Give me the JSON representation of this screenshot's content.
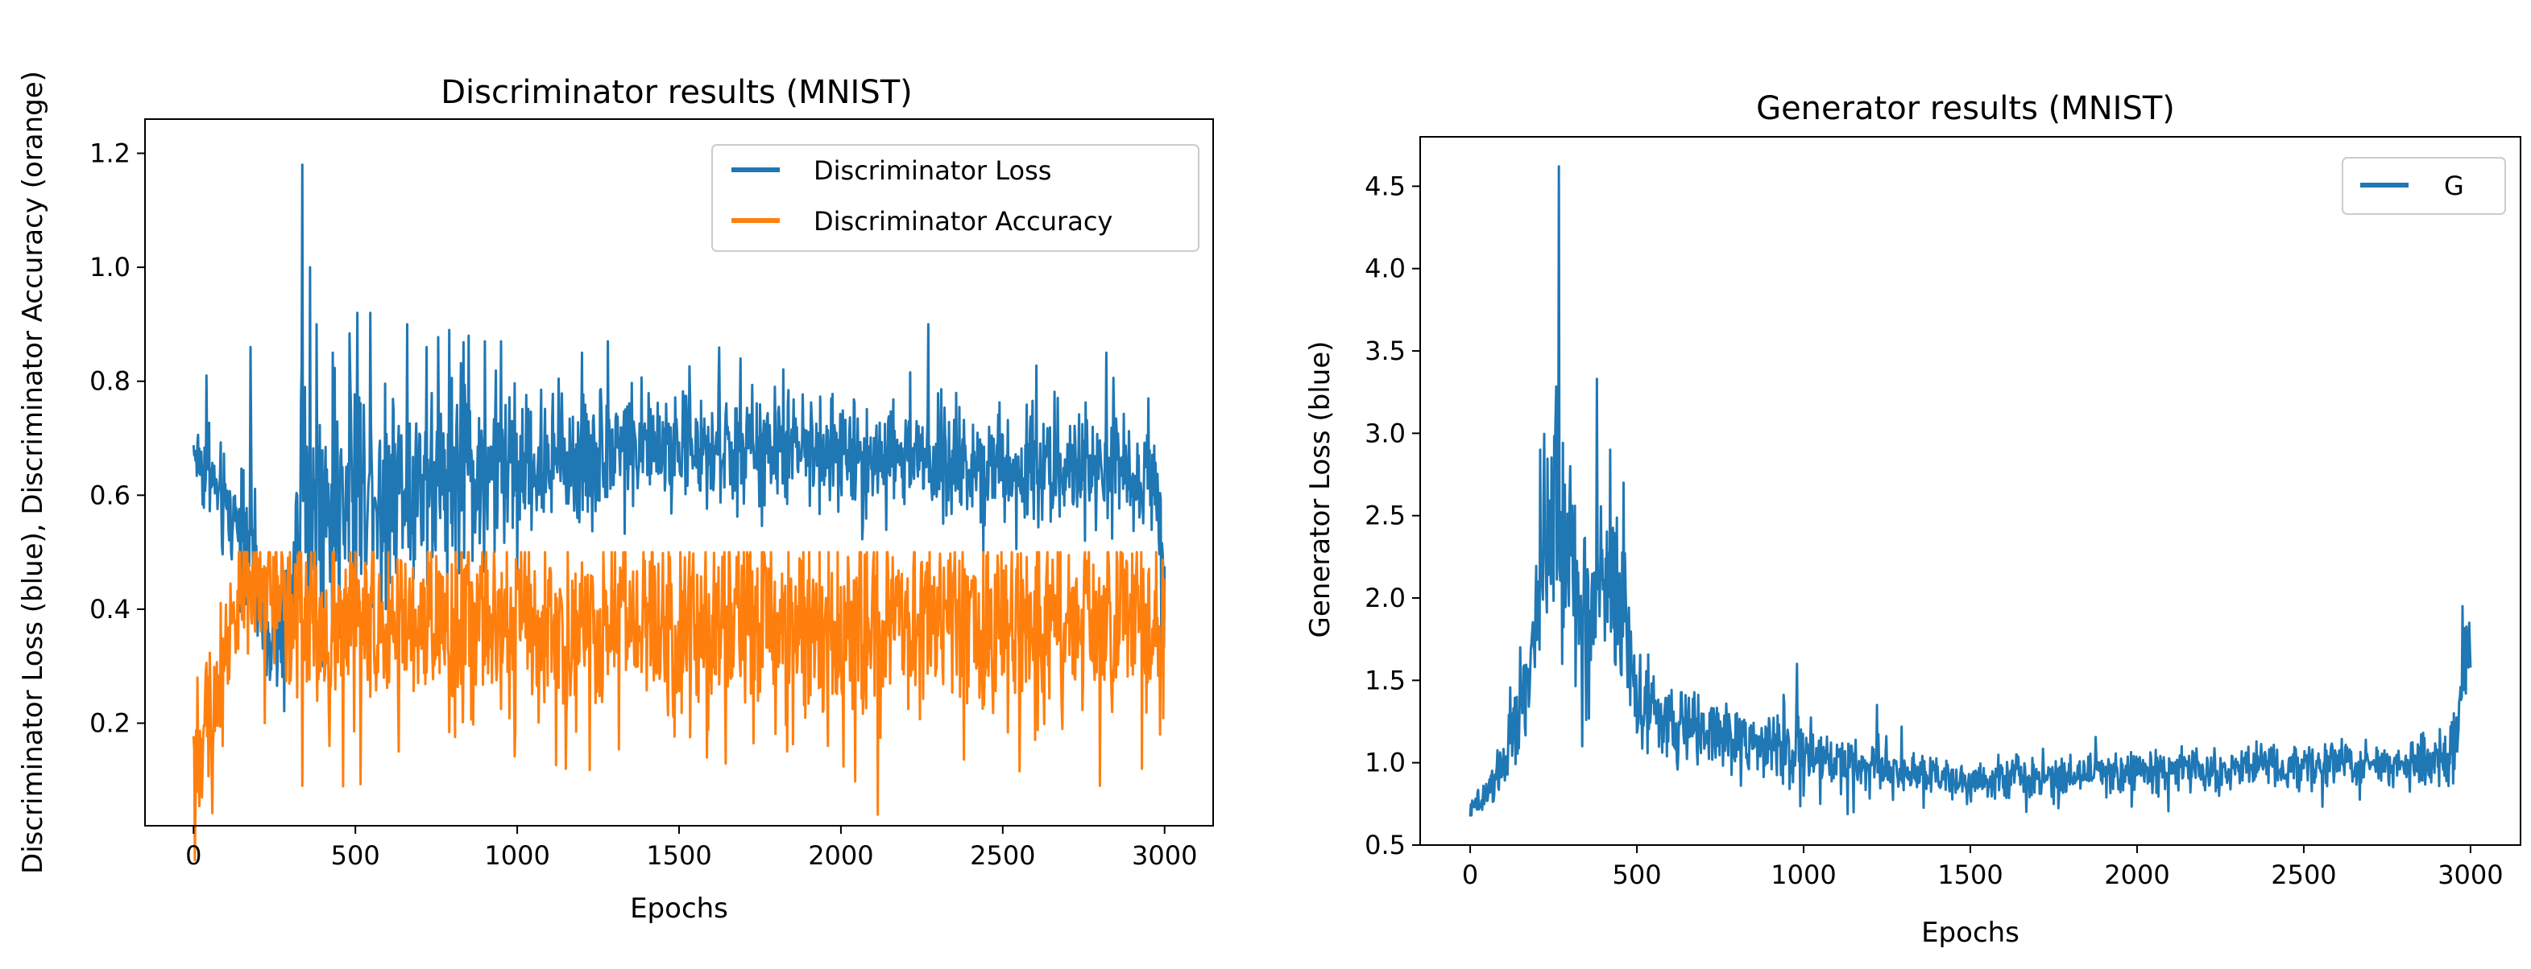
{
  "chart_data": [
    {
      "type": "line",
      "title": "Discriminator results (MNIST)",
      "xlabel": "Epochs",
      "ylabel": "Discriminator Loss (blue), Discriminator Accuracy (orange)",
      "xlim": [
        -150,
        3150
      ],
      "ylim": [
        0.02,
        1.26
      ],
      "xticks": [
        0,
        500,
        1000,
        1500,
        2000,
        2500,
        3000
      ],
      "xtick_labels": [
        "0",
        "500",
        "1000",
        "1500",
        "2000",
        "2500",
        "3000"
      ],
      "yticks": [
        0.2,
        0.4,
        0.6,
        0.8,
        1.0,
        1.2
      ],
      "ytick_labels": [
        "0.2",
        "0.4",
        "0.6",
        "0.8",
        "1.0",
        "1.2"
      ],
      "legend_position": "upper right",
      "grid": false,
      "series": [
        {
          "name": "Discriminator Loss",
          "color": "#1f77b4",
          "x": [
            0,
            30,
            60,
            90,
            120,
            150,
            180,
            210,
            240,
            270,
            300,
            330,
            360,
            400,
            450,
            500,
            600,
            700,
            800,
            900,
            1000,
            1100,
            1200,
            1300,
            1400,
            1500,
            1600,
            1700,
            1800,
            1900,
            2000,
            2100,
            2200,
            2300,
            2400,
            2500,
            2600,
            2700,
            2800,
            2900,
            2970,
            3000
          ],
          "center": [
            0.68,
            0.65,
            0.62,
            0.58,
            0.56,
            0.57,
            0.55,
            0.35,
            0.33,
            0.35,
            0.4,
            0.62,
            0.6,
            0.56,
            0.6,
            0.62,
            0.62,
            0.63,
            0.64,
            0.64,
            0.65,
            0.66,
            0.66,
            0.69,
            0.69,
            0.68,
            0.68,
            0.68,
            0.68,
            0.68,
            0.67,
            0.67,
            0.67,
            0.66,
            0.66,
            0.66,
            0.65,
            0.65,
            0.64,
            0.64,
            0.63,
            0.5
          ],
          "amplitude": [
            0.03,
            0.05,
            0.06,
            0.06,
            0.06,
            0.07,
            0.08,
            0.05,
            0.05,
            0.06,
            0.08,
            0.12,
            0.12,
            0.12,
            0.11,
            0.11,
            0.1,
            0.1,
            0.1,
            0.1,
            0.09,
            0.08,
            0.08,
            0.06,
            0.06,
            0.06,
            0.06,
            0.06,
            0.06,
            0.06,
            0.06,
            0.06,
            0.06,
            0.06,
            0.06,
            0.06,
            0.06,
            0.06,
            0.06,
            0.06,
            0.06,
            0.1
          ],
          "spikes": [
            {
              "x": 40,
              "y": 0.81
            },
            {
              "x": 175,
              "y": 0.86
            },
            {
              "x": 220,
              "y": 0.25
            },
            {
              "x": 300,
              "y": 0.46
            },
            {
              "x": 335,
              "y": 1.18
            },
            {
              "x": 345,
              "y": 0.5
            },
            {
              "x": 360,
              "y": 1.0
            },
            {
              "x": 380,
              "y": 0.9
            },
            {
              "x": 400,
              "y": 0.3
            },
            {
              "x": 430,
              "y": 0.85
            },
            {
              "x": 450,
              "y": 0.35
            },
            {
              "x": 505,
              "y": 0.92
            },
            {
              "x": 545,
              "y": 0.92
            },
            {
              "x": 580,
              "y": 0.38
            },
            {
              "x": 660,
              "y": 0.9
            },
            {
              "x": 720,
              "y": 0.86
            },
            {
              "x": 790,
              "y": 0.89
            },
            {
              "x": 850,
              "y": 0.88
            },
            {
              "x": 900,
              "y": 0.87
            },
            {
              "x": 950,
              "y": 0.87
            },
            {
              "x": 1000,
              "y": 0.47
            },
            {
              "x": 1200,
              "y": 0.85
            },
            {
              "x": 1280,
              "y": 0.87
            },
            {
              "x": 1690,
              "y": 0.84
            },
            {
              "x": 2270,
              "y": 0.9
            },
            {
              "x": 2440,
              "y": 0.5
            },
            {
              "x": 2820,
              "y": 0.85
            },
            {
              "x": 2950,
              "y": 0.77
            },
            {
              "x": 2990,
              "y": 0.33
            }
          ]
        },
        {
          "name": "Discriminator Accuracy",
          "color": "#ff7f0e",
          "x": [
            0,
            20,
            50,
            80,
            110,
            140,
            170,
            200,
            250,
            300,
            400,
            600,
            1000,
            1500,
            2000,
            2500,
            2900,
            3000
          ],
          "center": [
            0.15,
            0.12,
            0.22,
            0.28,
            0.36,
            0.42,
            0.45,
            0.45,
            0.44,
            0.42,
            0.38,
            0.37,
            0.37,
            0.37,
            0.37,
            0.37,
            0.37,
            0.4
          ],
          "amplitude": [
            0.08,
            0.08,
            0.08,
            0.08,
            0.07,
            0.06,
            0.06,
            0.06,
            0.07,
            0.09,
            0.1,
            0.1,
            0.1,
            0.1,
            0.1,
            0.1,
            0.1,
            0.1
          ],
          "cap": 0.5,
          "spikes": [
            {
              "x": 5,
              "y": 0.06
            },
            {
              "x": 12,
              "y": 0.28
            },
            {
              "x": 25,
              "y": 0.07
            },
            {
              "x": 60,
              "y": 0.16
            },
            {
              "x": 90,
              "y": 0.16
            },
            {
              "x": 220,
              "y": 0.2
            },
            {
              "x": 335,
              "y": 0.09
            },
            {
              "x": 420,
              "y": 0.16
            },
            {
              "x": 1150,
              "y": 0.12
            },
            {
              "x": 1960,
              "y": 0.16
            },
            {
              "x": 2800,
              "y": 0.09
            },
            {
              "x": 2930,
              "y": 0.12
            },
            {
              "x": 2985,
              "y": 0.18
            }
          ]
        }
      ]
    },
    {
      "type": "line",
      "title": "Generator results (MNIST)",
      "xlabel": "Epochs",
      "ylabel": "Generator Loss (blue)",
      "xlim": [
        -150,
        3150
      ],
      "ylim": [
        0.5,
        4.8
      ],
      "xticks": [
        0,
        500,
        1000,
        1500,
        2000,
        2500,
        3000
      ],
      "xtick_labels": [
        "0",
        "500",
        "1000",
        "1500",
        "2000",
        "2500",
        "3000"
      ],
      "yticks": [
        0.5,
        1.0,
        1.5,
        2.0,
        2.5,
        3.0,
        3.5,
        4.0,
        4.5
      ],
      "ytick_labels": [
        "0.5",
        "1.0",
        "1.5",
        "2.0",
        "2.5",
        "3.0",
        "3.5",
        "4.0",
        "4.5"
      ],
      "legend_position": "upper right",
      "grid": false,
      "series": [
        {
          "name": "G",
          "color": "#1f77b4",
          "x": [
            0,
            50,
            100,
            150,
            200,
            230,
            260,
            300,
            350,
            400,
            450,
            500,
            550,
            600,
            700,
            800,
            900,
            1000,
            1100,
            1200,
            1300,
            1400,
            1500,
            1700,
            2000,
            2300,
            2600,
            2900,
            2960,
            2980,
            3000
          ],
          "center": [
            0.7,
            0.8,
            1.0,
            1.3,
            1.8,
            2.4,
            2.5,
            2.2,
            1.9,
            2.1,
            2.0,
            1.4,
            1.3,
            1.2,
            1.2,
            1.15,
            1.1,
            1.05,
            1.0,
            1.0,
            0.95,
            0.92,
            0.9,
            0.92,
            0.95,
            0.97,
            0.98,
            1.0,
            1.1,
            1.6,
            1.7
          ],
          "amplitude": [
            0.03,
            0.08,
            0.1,
            0.15,
            0.25,
            0.35,
            0.35,
            0.35,
            0.3,
            0.3,
            0.3,
            0.15,
            0.15,
            0.15,
            0.14,
            0.13,
            0.13,
            0.13,
            0.1,
            0.1,
            0.09,
            0.08,
            0.08,
            0.08,
            0.08,
            0.08,
            0.08,
            0.09,
            0.15,
            0.2,
            0.2
          ],
          "spikes": [
            {
              "x": 150,
              "y": 1.7
            },
            {
              "x": 210,
              "y": 2.9
            },
            {
              "x": 255,
              "y": 3.1
            },
            {
              "x": 265,
              "y": 4.62
            },
            {
              "x": 275,
              "y": 1.6
            },
            {
              "x": 300,
              "y": 2.8
            },
            {
              "x": 335,
              "y": 1.1
            },
            {
              "x": 380,
              "y": 3.33
            },
            {
              "x": 420,
              "y": 2.9
            },
            {
              "x": 460,
              "y": 2.7
            },
            {
              "x": 480,
              "y": 1.35
            },
            {
              "x": 980,
              "y": 1.6
            },
            {
              "x": 1000,
              "y": 0.8
            },
            {
              "x": 1050,
              "y": 0.75
            },
            {
              "x": 1150,
              "y": 0.7
            },
            {
              "x": 1220,
              "y": 1.35
            },
            {
              "x": 2950,
              "y": 1.3
            },
            {
              "x": 2975,
              "y": 1.95
            },
            {
              "x": 2985,
              "y": 1.42
            },
            {
              "x": 2995,
              "y": 1.85
            }
          ]
        }
      ]
    }
  ]
}
